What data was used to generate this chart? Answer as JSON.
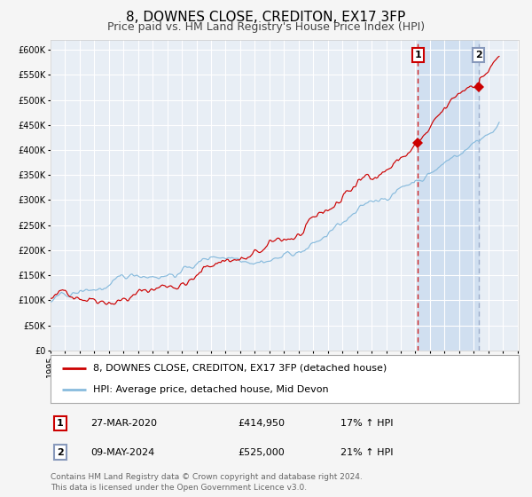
{
  "title": "8, DOWNES CLOSE, CREDITON, EX17 3FP",
  "subtitle": "Price paid vs. HM Land Registry's House Price Index (HPI)",
  "ylim": [
    0,
    620000
  ],
  "yticks": [
    0,
    50000,
    100000,
    150000,
    200000,
    250000,
    300000,
    350000,
    400000,
    450000,
    500000,
    550000,
    600000
  ],
  "bg_color": "#f5f5f5",
  "plot_bg_color": "#e8eef5",
  "grid_color": "#ffffff",
  "red_line_color": "#cc0000",
  "blue_line_color": "#88bbdd",
  "marker1_x": 302,
  "marker1_value": 414950,
  "marker2_x": 352,
  "marker2_value": 525000,
  "vline1_color": "#cc0000",
  "vline2_color": "#8899bb",
  "shade_color": "#d0dff0",
  "legend_label1": "8, DOWNES CLOSE, CREDITON, EX17 3FP (detached house)",
  "legend_label2": "HPI: Average price, detached house, Mid Devon",
  "table_row1": [
    "1",
    "27-MAR-2020",
    "£414,950",
    "17% ↑ HPI"
  ],
  "table_row2": [
    "2",
    "09-MAY-2024",
    "£525,000",
    "21% ↑ HPI"
  ],
  "footer": "Contains HM Land Registry data © Crown copyright and database right 2024.\nThis data is licensed under the Open Government Licence v3.0.",
  "title_fontsize": 11,
  "subtitle_fontsize": 9,
  "tick_fontsize": 7,
  "legend_fontsize": 8,
  "table_fontsize": 8,
  "footer_fontsize": 6.5,
  "start_year": 1995,
  "end_year": 2027,
  "x_max_months": 385
}
